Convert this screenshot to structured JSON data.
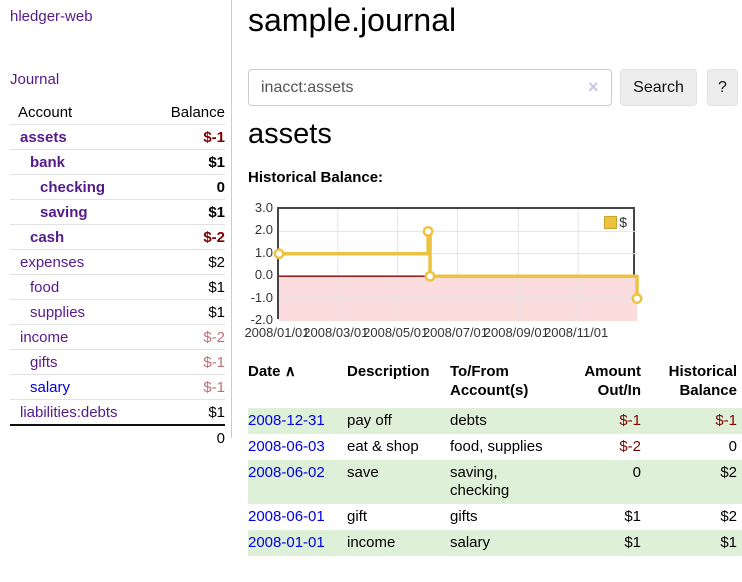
{
  "colors": {
    "accent_purple": "#551a8b",
    "link_blue": "#0000e0",
    "negative_red": "#800000",
    "muted_negative": "#c0707a",
    "stripe_green": "#dff0d8",
    "series_gold": "#edc240",
    "negative_region_pink": "#fbdcdc",
    "zero_line_red": "#8b0000"
  },
  "sidebar": {
    "app_title": "hledger-web",
    "journal_link": "Journal",
    "accounts": {
      "col_account": "Account",
      "col_balance": "Balance",
      "rows": [
        {
          "name": "assets",
          "balance": "$-1"
        },
        {
          "name": "bank",
          "balance": "$1"
        },
        {
          "name": "checking",
          "balance": "0"
        },
        {
          "name": "saving",
          "balance": "$1"
        },
        {
          "name": "cash",
          "balance": "$-2"
        },
        {
          "name": "expenses",
          "balance": "$2"
        },
        {
          "name": "food",
          "balance": "$1"
        },
        {
          "name": "supplies",
          "balance": "$1"
        },
        {
          "name": "income",
          "balance": "$-2"
        },
        {
          "name": "gifts",
          "balance": "$-1"
        },
        {
          "name": "salary",
          "balance": "$-1"
        },
        {
          "name": "liabilities:debts",
          "balance": "$1"
        }
      ],
      "total": "0"
    }
  },
  "main": {
    "title": "sample.journal",
    "search": {
      "value": "inacct:assets",
      "clear_icon": "×",
      "search_button": "Search",
      "help_button": "?"
    },
    "account_heading": "assets",
    "section_label": "Historical Balance:",
    "sort_icon": "∧",
    "transactions": {
      "headers": {
        "date": "Date",
        "description": "Description",
        "tofrom": "To/From Account(s)",
        "amount": "Amount Out/In",
        "balance": "Historical Balance"
      },
      "rows": [
        {
          "date": "2008-12-31",
          "description": "pay off",
          "tofrom": "debts",
          "amount": "$-1",
          "balance": "$-1"
        },
        {
          "date": "2008-06-03",
          "description": "eat & shop",
          "tofrom": "food, supplies",
          "amount": "$-2",
          "balance": "0"
        },
        {
          "date": "2008-06-02",
          "description": "save",
          "tofrom": "saving, checking",
          "amount": "0",
          "balance": "$2"
        },
        {
          "date": "2008-06-01",
          "description": "gift",
          "tofrom": "gifts",
          "amount": "$1",
          "balance": "$2"
        },
        {
          "date": "2008-01-01",
          "description": "income",
          "tofrom": "salary",
          "amount": "$1",
          "balance": "$1"
        }
      ]
    }
  },
  "chart_data": {
    "type": "line",
    "step": true,
    "title": "Historical Balance",
    "series": [
      {
        "name": "$",
        "color": "#edc240",
        "points": [
          [
            "2008-01-01",
            1
          ],
          [
            "2008-06-01",
            2
          ],
          [
            "2008-06-03",
            0
          ],
          [
            "2008-12-31",
            -1
          ]
        ]
      }
    ],
    "xrange": [
      "2008-01-01",
      "2008-12-31"
    ],
    "ylim": [
      -2,
      3
    ],
    "yticks": [
      "3.0",
      "2.0",
      "1.0",
      "0.0",
      "-1.0",
      "-2.0"
    ],
    "xtick_labels": [
      "2008/01/01",
      "2008/03/01",
      "2008/05/01",
      "2008/07/01",
      "2008/09/01",
      "2008/11/01"
    ],
    "xtick_dates": [
      "2008-01-01",
      "2008-03-01",
      "2008-05-01",
      "2008-07-01",
      "2008-09-01",
      "2008-11-01"
    ],
    "grid": true,
    "legend": {
      "position": "top-right",
      "label": "$"
    },
    "negative_region": true
  }
}
